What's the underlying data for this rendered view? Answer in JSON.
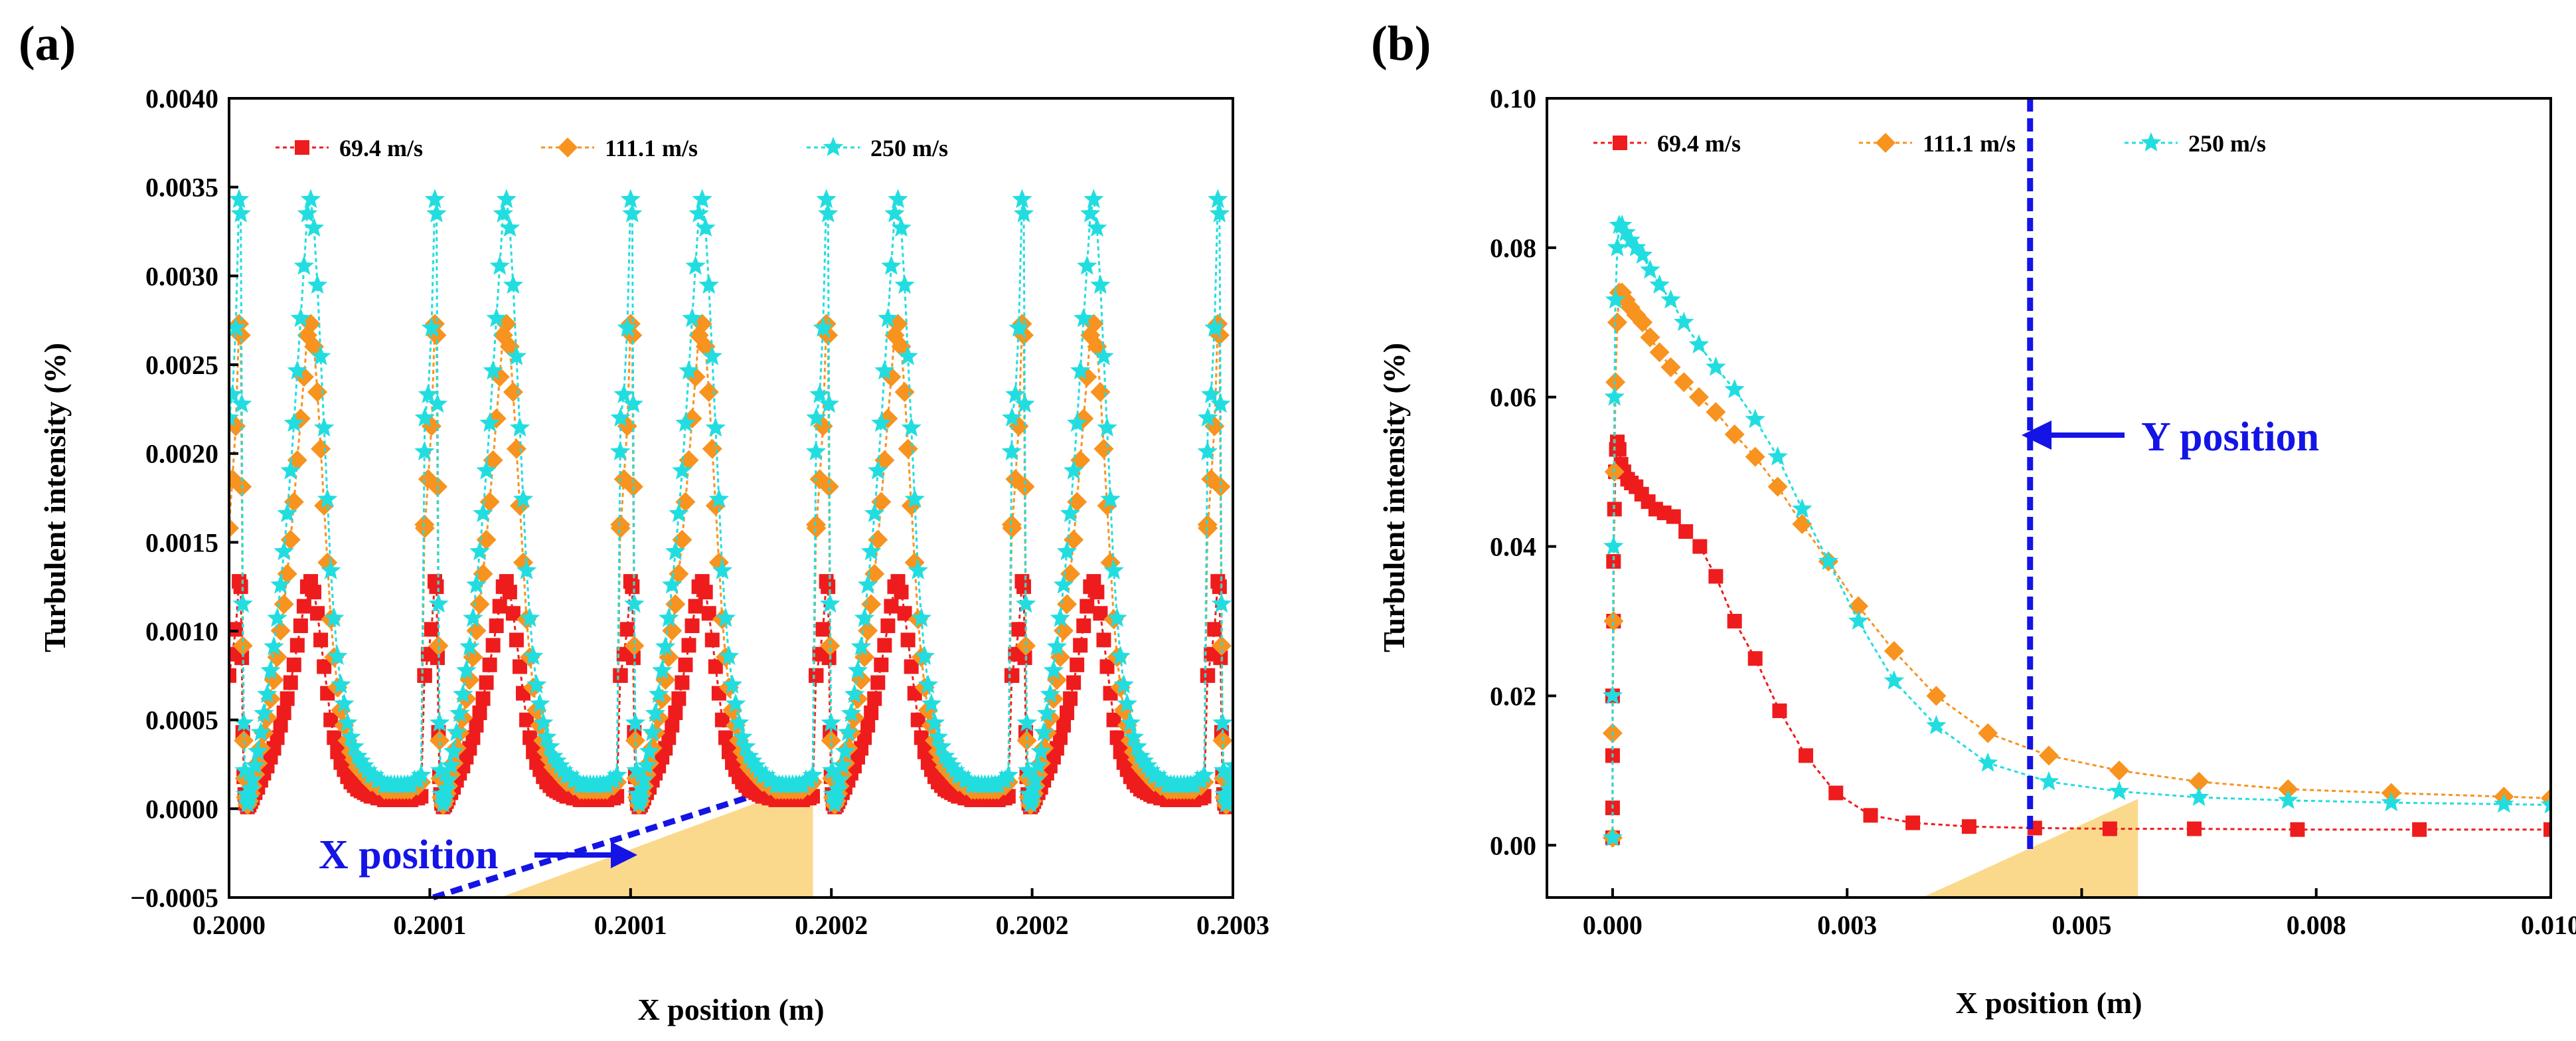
{
  "figure": {
    "colors": {
      "s1": "#ee1c1c",
      "s2": "#f7931e",
      "s3": "#22dde0",
      "annotation": "#1414e6",
      "wedge": "#fbd98c"
    }
  },
  "chart_data": [
    {
      "type": "scatter",
      "panel_label": "(a)",
      "xlabel": "X position (m)",
      "ylabel": "Turbulent intensity (%)",
      "xlim": [
        0.2,
        0.2003
      ],
      "ylim": [
        -0.0005,
        0.004
      ],
      "xticks": [
        0.2,
        0.20006,
        0.20012,
        0.20018,
        0.20024,
        0.2003
      ],
      "xticklabels": [
        "0.2000",
        "0.2001",
        "0.2001",
        "0.2002",
        "0.2002",
        "0.2003"
      ],
      "yticks": [
        -0.0005,
        0.0,
        0.0005,
        0.001,
        0.0015,
        0.002,
        0.0025,
        0.003,
        0.0035,
        0.004
      ],
      "yticklabels": [
        "−0.0005",
        "0.0000",
        "0.0005",
        "0.0010",
        "0.0015",
        "0.0020",
        "0.0025",
        "0.0030",
        "0.0035",
        "0.0040"
      ],
      "legend": {
        "placement": "top-left",
        "entries": [
          "69.4 m/s",
          "111.1 m/s",
          "250 m/s"
        ]
      },
      "period": 5.85e-05,
      "series": [
        {
          "name": "69.4 m/s",
          "marker": "square",
          "x": [
            0.2,
            0.200001,
            0.200002,
            0.200003,
            0.2000035,
            0.2000038,
            0.2000041,
            0.2000044,
            0.2000047,
            0.200005,
            0.2000055,
            0.200006,
            0.2000065,
            0.200007,
            0.2000078,
            0.2000086,
            0.2000095,
            0.2000104,
            0.2000114,
            0.2000124,
            0.2000134,
            0.2000144,
            0.2000154,
            0.2000164,
            0.2000174,
            0.2000184,
            0.2000194,
            0.2000204,
            0.2000214,
            0.2000224,
            0.2000234,
            0.2000244,
            0.2000254,
            0.2000264,
            0.2000274,
            0.2000284,
            0.2000294,
            0.2000304,
            0.2000314,
            0.2000324,
            0.2000334,
            0.2000344,
            0.2000354,
            0.2000364,
            0.2000374,
            0.2000384,
            0.2000394,
            0.2000404,
            0.2000414,
            0.2000424,
            0.2000434,
            0.2000444,
            0.2000454,
            0.2000464,
            0.2000474,
            0.2000484,
            0.2000494,
            0.2000504,
            0.2000514,
            0.2000524,
            0.2000534,
            0.2000544,
            0.2000554,
            0.2000564,
            0.2000574,
            0.2000584
          ],
          "y": [
            0.00075,
            0.00087,
            0.00101,
            0.00128,
            0.00125,
            0.00085,
            0.00043,
            0.00018,
            8e-05,
            3e-05,
            1e-05,
            2e-05,
            4e-05,
            6e-05,
            9e-05,
            0.00012,
            0.00016,
            0.0002,
            0.00024,
            0.00029,
            0.00034,
            0.0004,
            0.00047,
            0.00054,
            0.00062,
            0.00071,
            0.00081,
            0.00092,
            0.00103,
            0.00114,
            0.00125,
            0.00128,
            0.00122,
            0.0011,
            0.00095,
            0.0008,
            0.00065,
            0.0005,
            0.0004,
            0.00032,
            0.00026,
            0.00022,
            0.00018,
            0.00015,
            0.00013,
            0.00011,
            0.0001,
            9e-05,
            8e-05,
            7e-05,
            7e-05,
            6e-05,
            6e-05,
            5e-05,
            5e-05,
            5e-05,
            5e-05,
            5e-05,
            5e-05,
            5e-05,
            5e-05,
            5e-05,
            6e-05,
            6e-05,
            7e-05,
            0.00075
          ]
        },
        {
          "name": "111.1 m/s",
          "marker": "diamond",
          "x": [],
          "y": []
        },
        {
          "name": "250 m/s",
          "marker": "star",
          "x": [],
          "y": []
        }
      ],
      "peak_values": {
        "69.4 m/s": 0.00128,
        "111.1 m/s": 0.00273,
        "250 m/s": 0.00343
      },
      "start_values": {
        "69.4 m/s": 0.00075,
        "111.1 m/s": 0.00158,
        "250 m/s": 0.0022
      },
      "annotation": {
        "text": "X position"
      }
    },
    {
      "type": "scatter",
      "panel_label": "(b)",
      "xlabel": "X position (m)",
      "ylabel": "Turbulent intensity (%)",
      "xlim": [
        -0.0007,
        0.01
      ],
      "ylim": [
        -0.007,
        0.1
      ],
      "xticks": [
        0.0,
        0.0025,
        0.005,
        0.0075,
        0.01
      ],
      "xticklabels": [
        "0.000",
        "0.003",
        "0.005",
        "0.008",
        "0.010"
      ],
      "yticks": [
        0.0,
        0.02,
        0.04,
        0.06,
        0.08,
        0.1
      ],
      "yticklabels": [
        "0.00",
        "0.02",
        "0.04",
        "0.06",
        "0.08",
        "0.10"
      ],
      "legend": {
        "placement": "top-left",
        "entries": [
          "69.4 m/s",
          "111.1 m/s",
          "250 m/s"
        ]
      },
      "series": [
        {
          "name": "69.4 m/s",
          "marker": "square",
          "x": [
            0.0,
            0.0,
            0.0,
            0.0,
            1e-05,
            1e-05,
            2e-05,
            3e-05,
            4e-05,
            5e-05,
            7e-05,
            9e-05,
            0.00012,
            0.00016,
            0.0002,
            0.00025,
            0.00031,
            0.00038,
            0.00046,
            0.00055,
            0.00065,
            0.00078,
            0.00093,
            0.0011,
            0.0013,
            0.00152,
            0.00178,
            0.00206,
            0.00238,
            0.00275,
            0.0032,
            0.0038,
            0.0045,
            0.0053,
            0.0062,
            0.0073,
            0.0086,
            0.01
          ],
          "y": [
            0.001,
            0.005,
            0.012,
            0.02,
            0.03,
            0.038,
            0.045,
            0.05,
            0.053,
            0.054,
            0.053,
            0.051,
            0.05,
            0.049,
            0.0485,
            0.048,
            0.047,
            0.046,
            0.045,
            0.0445,
            0.044,
            0.042,
            0.04,
            0.036,
            0.03,
            0.025,
            0.018,
            0.012,
            0.007,
            0.004,
            0.003,
            0.0025,
            0.0023,
            0.0022,
            0.0022,
            0.0021,
            0.0021,
            0.0021
          ]
        },
        {
          "name": "111.1 m/s",
          "marker": "diamond",
          "x": [
            0.0,
            0.0,
            1e-05,
            2e-05,
            3e-05,
            5e-05,
            7e-05,
            0.0001,
            0.00014,
            0.00019,
            0.00025,
            0.00032,
            0.0004,
            0.0005,
            0.00062,
            0.00076,
            0.00092,
            0.0011,
            0.0013,
            0.00152,
            0.00176,
            0.00202,
            0.0023,
            0.00262,
            0.003,
            0.00345,
            0.004,
            0.00465,
            0.0054,
            0.00625,
            0.0072,
            0.0083,
            0.0095,
            0.01
          ],
          "y": [
            0.001,
            0.015,
            0.03,
            0.05,
            0.062,
            0.07,
            0.074,
            0.074,
            0.073,
            0.072,
            0.071,
            0.07,
            0.068,
            0.066,
            0.064,
            0.062,
            0.06,
            0.058,
            0.055,
            0.052,
            0.048,
            0.043,
            0.038,
            0.032,
            0.026,
            0.02,
            0.015,
            0.012,
            0.01,
            0.0085,
            0.0075,
            0.007,
            0.0065,
            0.0063
          ]
        },
        {
          "name": "250 m/s",
          "marker": "star",
          "x": [
            0.0,
            0.0,
            1e-05,
            2e-05,
            3e-05,
            5e-05,
            7e-05,
            0.0001,
            0.00014,
            0.00019,
            0.00025,
            0.00032,
            0.0004,
            0.0005,
            0.00062,
            0.00076,
            0.00092,
            0.0011,
            0.0013,
            0.00152,
            0.00176,
            0.00202,
            0.0023,
            0.00262,
            0.003,
            0.00345,
            0.004,
            0.00465,
            0.0054,
            0.00625,
            0.0072,
            0.0083,
            0.0095,
            0.01
          ],
          "y": [
            0.001,
            0.02,
            0.04,
            0.06,
            0.073,
            0.08,
            0.083,
            0.083,
            0.082,
            0.081,
            0.08,
            0.079,
            0.077,
            0.075,
            0.073,
            0.07,
            0.067,
            0.064,
            0.061,
            0.057,
            0.052,
            0.045,
            0.038,
            0.03,
            0.022,
            0.016,
            0.011,
            0.0085,
            0.0072,
            0.0064,
            0.006,
            0.0057,
            0.0055,
            0.0054
          ]
        }
      ],
      "annotation": {
        "text": "Y position",
        "vline_x": 0.00445
      }
    }
  ]
}
